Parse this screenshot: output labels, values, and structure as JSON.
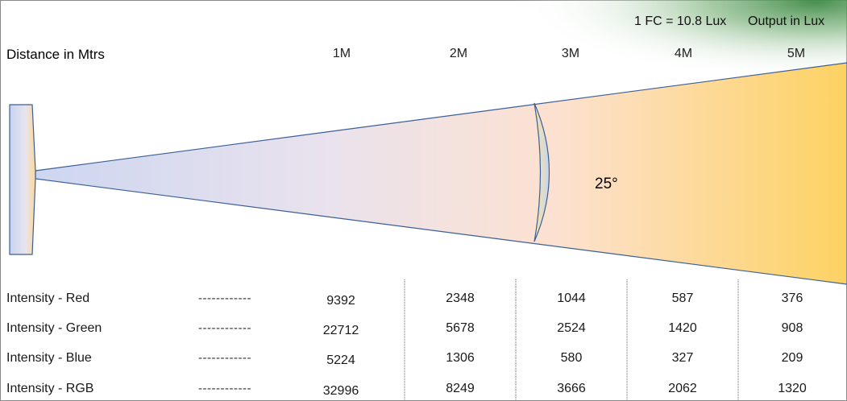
{
  "header": {
    "distance_label": "Distance in Mtrs",
    "conversion": "1 FC = 10.8 Lux",
    "output_label": "Output in Lux"
  },
  "distances": [
    "1M",
    "2M",
    "3M",
    "4M",
    "5M"
  ],
  "beam_angle": "25°",
  "table": {
    "rows": [
      {
        "label": "Intensity - Red",
        "dash": "------------",
        "values": [
          "9392",
          "2348",
          "1044",
          "587",
          "376"
        ]
      },
      {
        "label": "Intensity - Green",
        "dash": "------------",
        "values": [
          "22712",
          "5678",
          "2524",
          "1420",
          "908"
        ]
      },
      {
        "label": "Intensity - Blue",
        "dash": "------------",
        "values": [
          "5224",
          "1306",
          "580",
          "327",
          "209"
        ]
      },
      {
        "label": "Intensity - RGB",
        "dash": "------------",
        "values": [
          "32996",
          "8249",
          "3666",
          "2062",
          "1320"
        ]
      }
    ]
  },
  "colors": {
    "beam_light": "#dfe3f3",
    "beam_warm": "#fde0c8",
    "beam_end": "#fdd36a",
    "outline": "#3a5f96",
    "green_glow": "#2e7d3a"
  }
}
